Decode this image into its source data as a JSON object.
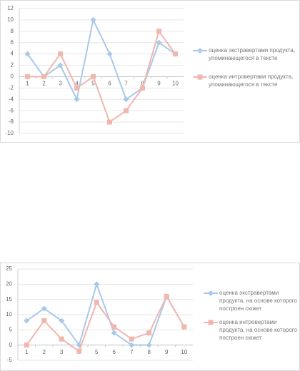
{
  "chart_data": [
    {
      "type": "line",
      "categories": [
        "1",
        "2",
        "3",
        "4",
        "5",
        "6",
        "7",
        "8",
        "9",
        "10"
      ],
      "series": [
        {
          "name": "оценка экстравертами продукта, упоминающегося в тексте",
          "color": "#a9c9ea",
          "marker": "diamond",
          "values": [
            4,
            0,
            2,
            -4,
            10,
            4,
            -4,
            -2,
            6,
            4
          ]
        },
        {
          "name": "оценка интровертами продукта, упоминающегося в тексте",
          "color": "#f1b6ae",
          "marker": "square",
          "values": [
            0,
            0,
            4,
            -2,
            0,
            -8,
            -6,
            -2,
            8,
            4
          ]
        }
      ],
      "ylim": [
        -10,
        12
      ],
      "yticks": [
        -10,
        -8,
        -6,
        -4,
        -2,
        0,
        2,
        4,
        6,
        8,
        10,
        12
      ],
      "grid": true
    },
    {
      "type": "line",
      "categories": [
        "1",
        "2",
        "3",
        "4",
        "5",
        "6",
        "7",
        "8",
        "9",
        "10"
      ],
      "series": [
        {
          "name": "оценка экстравертами продукта, на основе которого построен сюжет",
          "color": "#a9c9ea",
          "marker": "diamond",
          "values": [
            8,
            12,
            8,
            0,
            20,
            4,
            0,
            0,
            16,
            6
          ]
        },
        {
          "name": "оценка интровертами продукта, на основе которого построен сюжет",
          "color": "#f1b6ae",
          "marker": "square",
          "values": [
            0,
            8,
            2,
            -2,
            14,
            6,
            2,
            4,
            16,
            6
          ]
        }
      ],
      "ylim": [
        -5,
        25
      ],
      "yticks": [
        -5,
        0,
        5,
        10,
        15,
        20,
        25
      ],
      "grid": true
    }
  ]
}
